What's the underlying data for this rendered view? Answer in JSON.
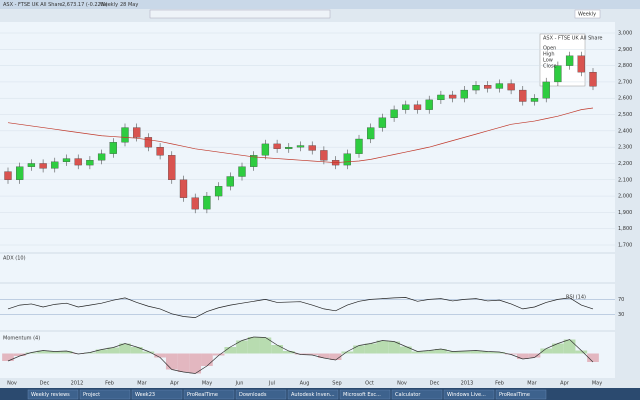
{
  "window": {
    "title": "ASX - FTSE UK All Share",
    "quote": "2,673.17 (-0.22%)",
    "period": "Weekly",
    "date": "28 May"
  },
  "chart_data": {
    "type": "candlestick",
    "candles": [
      [
        2150,
        2175,
        2075,
        2100
      ],
      [
        2100,
        2205,
        2075,
        2180
      ],
      [
        2180,
        2225,
        2155,
        2200
      ],
      [
        2200,
        2225,
        2145,
        2170
      ],
      [
        2170,
        2235,
        2145,
        2210
      ],
      [
        2210,
        2255,
        2185,
        2230
      ],
      [
        2230,
        2255,
        2165,
        2190
      ],
      [
        2190,
        2245,
        2165,
        2220
      ],
      [
        2220,
        2285,
        2195,
        2260
      ],
      [
        2260,
        2355,
        2235,
        2330
      ],
      [
        2330,
        2445,
        2305,
        2420
      ],
      [
        2420,
        2445,
        2335,
        2360
      ],
      [
        2360,
        2385,
        2275,
        2300
      ],
      [
        2300,
        2325,
        2225,
        2250
      ],
      [
        2250,
        2275,
        2075,
        2100
      ],
      [
        2100,
        2125,
        1965,
        1990
      ],
      [
        1990,
        2015,
        1895,
        1920
      ],
      [
        1920,
        2025,
        1895,
        2000
      ],
      [
        2000,
        2085,
        1975,
        2060
      ],
      [
        2060,
        2145,
        2035,
        2120
      ],
      [
        2120,
        2205,
        2095,
        2180
      ],
      [
        2180,
        2275,
        2155,
        2250
      ],
      [
        2250,
        2345,
        2225,
        2320
      ],
      [
        2320,
        2345,
        2265,
        2290
      ],
      [
        2290,
        2325,
        2265,
        2300
      ],
      [
        2300,
        2335,
        2275,
        2310
      ],
      [
        2310,
        2335,
        2255,
        2280
      ],
      [
        2280,
        2305,
        2195,
        2220
      ],
      [
        2220,
        2245,
        2165,
        2190
      ],
      [
        2190,
        2285,
        2165,
        2260
      ],
      [
        2260,
        2375,
        2235,
        2350
      ],
      [
        2350,
        2445,
        2325,
        2420
      ],
      [
        2420,
        2505,
        2395,
        2480
      ],
      [
        2480,
        2555,
        2455,
        2530
      ],
      [
        2530,
        2585,
        2505,
        2560
      ],
      [
        2560,
        2585,
        2505,
        2530
      ],
      [
        2530,
        2615,
        2505,
        2590
      ],
      [
        2590,
        2645,
        2565,
        2620
      ],
      [
        2620,
        2645,
        2575,
        2600
      ],
      [
        2600,
        2675,
        2575,
        2650
      ],
      [
        2650,
        2705,
        2625,
        2680
      ],
      [
        2680,
        2705,
        2635,
        2660
      ],
      [
        2660,
        2715,
        2635,
        2690
      ],
      [
        2690,
        2715,
        2625,
        2650
      ],
      [
        2650,
        2675,
        2555,
        2580
      ],
      [
        2580,
        2625,
        2555,
        2600
      ],
      [
        2600,
        2725,
        2575,
        2700
      ],
      [
        2700,
        2825,
        2675,
        2800
      ],
      [
        2800,
        2885,
        2775,
        2860
      ],
      [
        2860,
        2885,
        2735,
        2760
      ],
      [
        2760,
        2785,
        2650,
        2673.17
      ]
    ],
    "moving_average": [
      2450,
      2440,
      2430,
      2420,
      2410,
      2400,
      2390,
      2380,
      2370,
      2365,
      2360,
      2355,
      2345,
      2335,
      2320,
      2305,
      2290,
      2280,
      2270,
      2260,
      2250,
      2240,
      2235,
      2230,
      2225,
      2220,
      2215,
      2210,
      2205,
      2210,
      2215,
      2225,
      2240,
      2255,
      2270,
      2285,
      2300,
      2320,
      2340,
      2360,
      2380,
      2400,
      2420,
      2440,
      2450,
      2460,
      2475,
      2490,
      2510,
      2530,
      2540
    ],
    "ylim": [
      1700,
      3000
    ],
    "yticks": [
      {
        "value": 1700,
        "label": "1,700"
      },
      {
        "value": 1800,
        "label": "1,800"
      },
      {
        "value": 1900,
        "label": "1,900"
      },
      {
        "value": 2000,
        "label": "2,000"
      },
      {
        "value": 2100,
        "label": "2,100"
      },
      {
        "value": 2200,
        "label": "2,200"
      },
      {
        "value": 2300,
        "label": "2,300"
      },
      {
        "value": 2400,
        "label": "2,400"
      },
      {
        "value": 2500,
        "label": "2,500"
      },
      {
        "value": 2600,
        "label": "2,600"
      },
      {
        "value": 2700,
        "label": "2,700"
      },
      {
        "value": 2800,
        "label": "2,800"
      },
      {
        "value": 2900,
        "label": "2,900"
      },
      {
        "value": 3000,
        "label": "3,000"
      }
    ],
    "up_color": "#2ecc40",
    "down_color": "#d9534f",
    "ma_color": "#c0392b",
    "x_labels": [
      "Nov",
      "Dec",
      "2012",
      "Feb",
      "Mar",
      "Apr",
      "May",
      "Jun",
      "Jul",
      "Aug",
      "Sep",
      "Oct",
      "Nov",
      "Dec",
      "2013",
      "Feb",
      "Mar",
      "Apr",
      "May"
    ],
    "tooltip": [
      "Open",
      "High",
      "Low",
      "Close"
    ],
    "adx_label": "ADX (10)",
    "rsi": {
      "label": "RSI (14)",
      "ylim": [
        0,
        100
      ],
      "yticks": [
        30,
        70
      ],
      "values": [
        45,
        55,
        58,
        50,
        57,
        60,
        50,
        55,
        60,
        68,
        74,
        62,
        52,
        45,
        32,
        25,
        22,
        38,
        48,
        55,
        60,
        65,
        70,
        62,
        63,
        64,
        55,
        45,
        40,
        55,
        65,
        70,
        72,
        74,
        75,
        65,
        70,
        72,
        66,
        70,
        72,
        66,
        68,
        58,
        45,
        50,
        62,
        70,
        74,
        55,
        45
      ]
    },
    "momentum": {
      "label": "Momentum (4)",
      "ylim": [
        -450,
        350
      ],
      "values": [
        -150,
        -50,
        20,
        60,
        40,
        50,
        -10,
        20,
        80,
        120,
        200,
        130,
        40,
        -80,
        -320,
        -370,
        -400,
        -250,
        -40,
        130,
        260,
        330,
        320,
        170,
        50,
        -20,
        -30,
        -90,
        -130,
        40,
        160,
        200,
        260,
        240,
        140,
        40,
        60,
        90,
        40,
        50,
        60,
        40,
        30,
        -20,
        -110,
        -80,
        100,
        200,
        280,
        60,
        -170
      ]
    }
  },
  "taskbar": {
    "items": [
      "Weekly reviews",
      "Project",
      "Week23",
      "ProRealTime",
      "Downloads",
      "Autodesk Inven...",
      "Microsoft Exc...",
      "Calculator",
      "Windows Live...",
      "ProRealTime"
    ]
  }
}
